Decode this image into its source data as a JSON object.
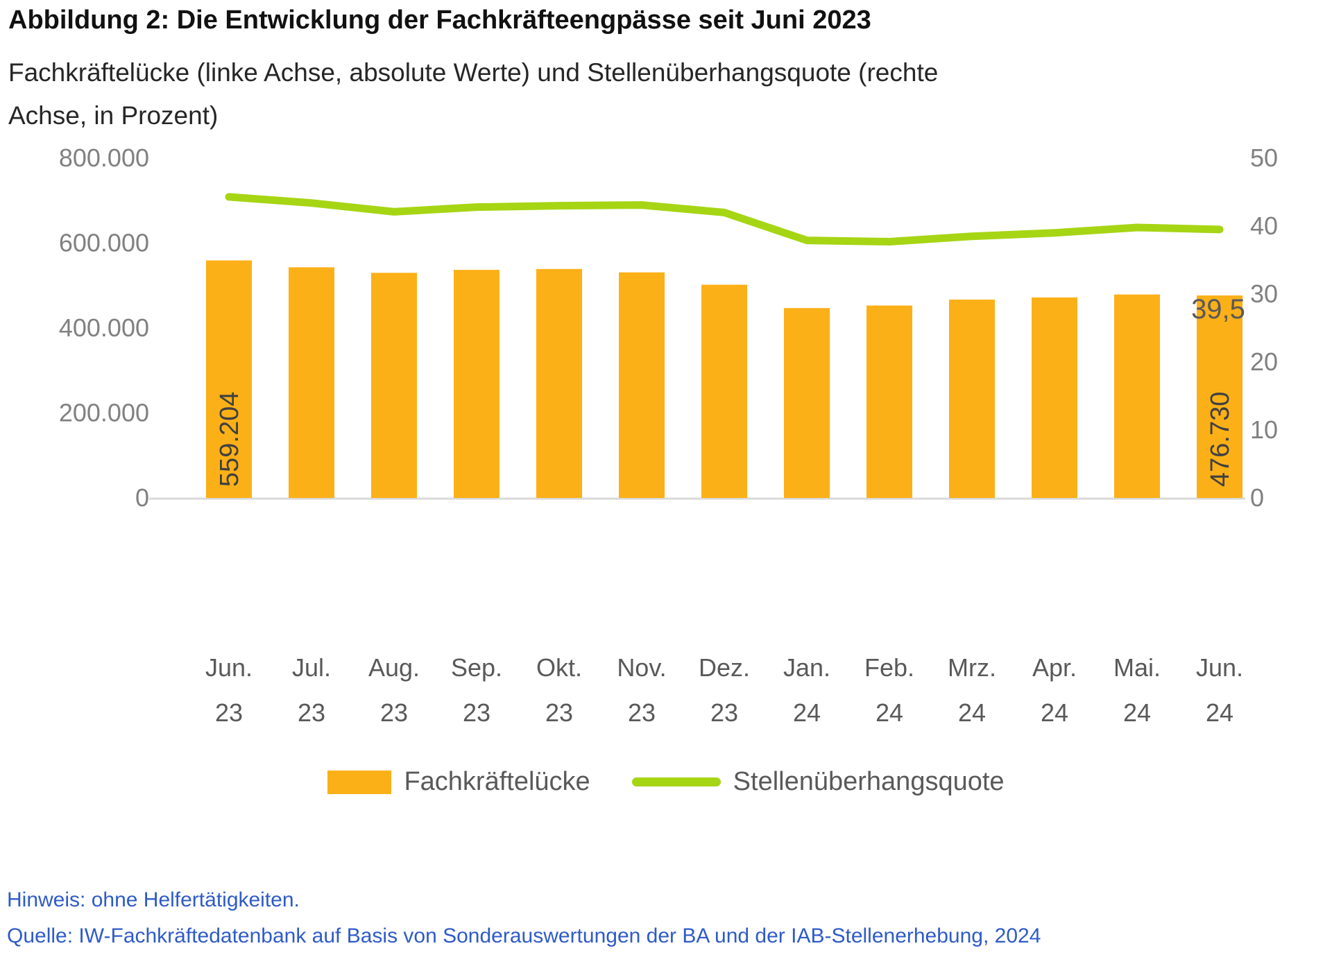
{
  "header": {
    "title": "Abbildung 2: Die Entwicklung der Fachkräfteengpässe seit Juni 2023",
    "subtitle_line1": "Fachkräftelücke (linke Achse, absolute Werte) und Stellenüberhangsquote (rechte",
    "subtitle_line2": "Achse, in Prozent)"
  },
  "footer": {
    "note": "Hinweis: ohne Helfertätigkeiten.",
    "source": "Quelle: IW-Fachkräftedatenbank auf Basis von Sonderauswertungen der BA und der IAB-Stellenerhebung, 2024"
  },
  "chart_data": {
    "type": "bar",
    "subtype": "bar+line combo, dual axis",
    "categories": [
      "Jun. 23",
      "Jul. 23",
      "Aug. 23",
      "Sep. 23",
      "Okt. 23",
      "Nov. 23",
      "Dez. 23",
      "Jan. 24",
      "Feb. 24",
      "Mrz. 24",
      "Apr. 24",
      "Mai. 24",
      "Jun. 24"
    ],
    "series": [
      {
        "name": "Fachkräftelücke",
        "type": "bar",
        "axis": "left",
        "color": "#FCB018",
        "values": [
          559204,
          543000,
          530000,
          537000,
          539000,
          531000,
          502000,
          447000,
          453000,
          467000,
          472000,
          479000,
          476730
        ],
        "value_labels": {
          "0": "559.204",
          "12": "476.730"
        },
        "value_label_color": "#404040"
      },
      {
        "name": "Stellenüberhangsquote",
        "type": "line",
        "axis": "right",
        "color": "#A6D514",
        "values": [
          44.3,
          43.4,
          42.1,
          42.8,
          43.0,
          43.1,
          42.0,
          37.9,
          37.7,
          38.5,
          39.0,
          39.8,
          39.5
        ],
        "end_label": "39,5",
        "end_label_color": "#595959"
      }
    ],
    "left_axis": {
      "ticks": [
        "800.000",
        "600.000",
        "400.000",
        "200.000",
        "0"
      ],
      "min": 0,
      "max": 800000,
      "tick_color": "#808080"
    },
    "right_axis": {
      "ticks": [
        "50",
        "40",
        "30",
        "20",
        "10",
        "0"
      ],
      "min": 0,
      "max": 50,
      "tick_color": "#808080"
    },
    "x_axis": {
      "label_color": "#595959",
      "baseline_color": "#D9D9D9"
    },
    "grid": "off",
    "legend_position": "bottom"
  }
}
